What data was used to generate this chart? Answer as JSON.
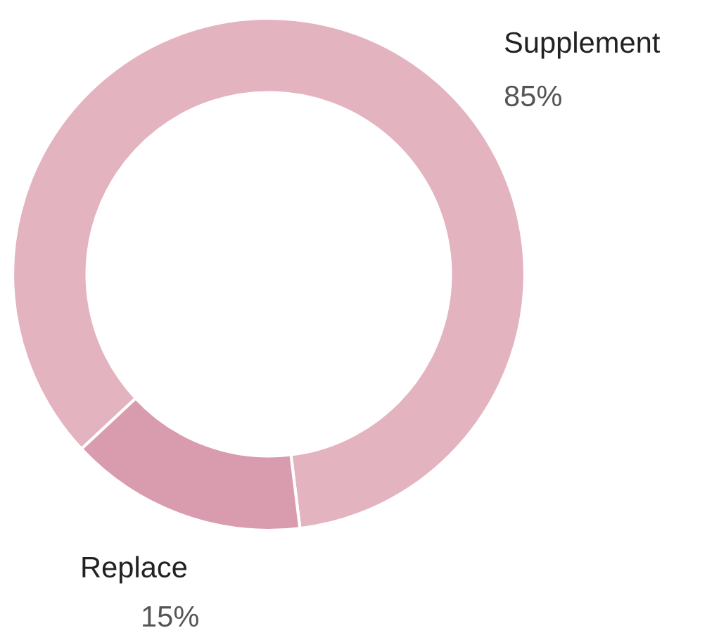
{
  "chart_data": {
    "type": "donut",
    "categories": [
      "Supplement",
      "Replace"
    ],
    "values": [
      85,
      15
    ],
    "colors": [
      "#e4b3c0",
      "#d99caf"
    ],
    "value_labels": [
      "85%",
      "15%"
    ],
    "legend": false
  }
}
